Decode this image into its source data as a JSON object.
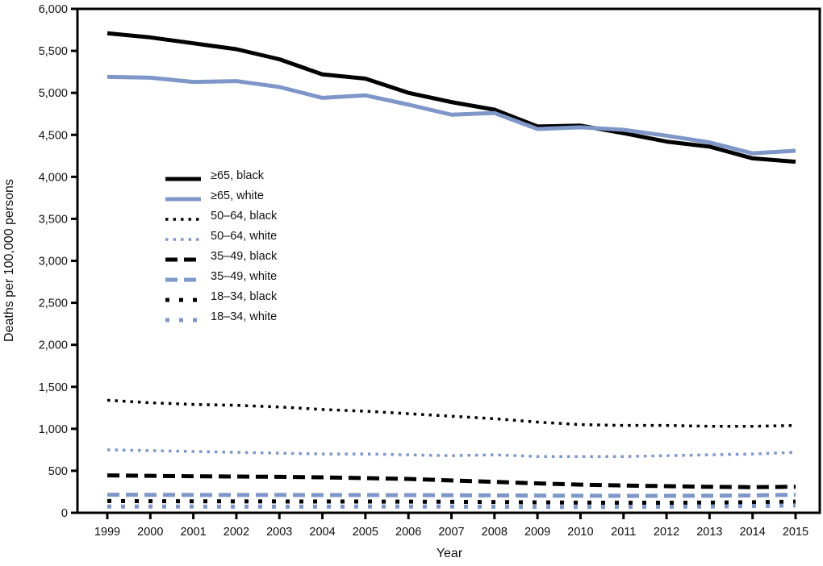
{
  "figure": {
    "background": "#ffffff",
    "frame_color": "#000000",
    "text_color": "#111111"
  },
  "colors": {
    "black_series": "#000000",
    "white_series": "#7e97c8"
  },
  "chart_data": {
    "type": "line",
    "title": "",
    "xlabel": "Year",
    "ylabel": "Deaths per 100,000 persons",
    "grid": false,
    "legend_position": "inside-upper-left",
    "xlim": [
      1999,
      2015
    ],
    "ylim": [
      0,
      6000
    ],
    "x": [
      1999,
      2000,
      2001,
      2002,
      2003,
      2004,
      2005,
      2006,
      2007,
      2008,
      2009,
      2010,
      2011,
      2012,
      2013,
      2014,
      2015
    ],
    "x_tick_labels": [
      "1999",
      "2000",
      "2001",
      "2002",
      "2003",
      "2004",
      "2005",
      "2006",
      "2007",
      "2008",
      "2009",
      "2010",
      "2011",
      "2012",
      "2013",
      "2014",
      "2015"
    ],
    "y_ticks": [
      0,
      500,
      1000,
      1500,
      2000,
      2500,
      3000,
      3500,
      4000,
      4500,
      5000,
      5500,
      6000
    ],
    "y_tick_labels": [
      "0",
      "500",
      "1,000",
      "1,500",
      "2,000",
      "2,500",
      "3,000",
      "3,500",
      "4,000",
      "4,500",
      "5,000",
      "5,500",
      "6,000"
    ],
    "series": [
      {
        "id": "ge65-black",
        "name": "≥65, black",
        "color": "#000000",
        "style": "solid",
        "values": [
          5710,
          5660,
          5590,
          5520,
          5400,
          5220,
          5170,
          5000,
          4890,
          4800,
          4600,
          4610,
          4520,
          4420,
          4360,
          4220,
          4180
        ]
      },
      {
        "id": "ge65-white",
        "name": "≥65, white",
        "color": "#7e97c8",
        "style": "solid",
        "values": [
          5190,
          5180,
          5130,
          5140,
          5070,
          4940,
          4970,
          4860,
          4740,
          4760,
          4570,
          4590,
          4560,
          4490,
          4410,
          4280,
          4310
        ]
      },
      {
        "id": "50-64-black",
        "name": "50–64, black",
        "color": "#000000",
        "style": "dotted",
        "values": [
          1340,
          1310,
          1290,
          1280,
          1260,
          1230,
          1210,
          1180,
          1150,
          1120,
          1080,
          1050,
          1040,
          1040,
          1030,
          1030,
          1040
        ]
      },
      {
        "id": "50-64-white",
        "name": "50–64, white",
        "color": "#7e97c8",
        "style": "dotted",
        "values": [
          750,
          740,
          730,
          720,
          710,
          700,
          700,
          690,
          680,
          690,
          670,
          670,
          670,
          680,
          690,
          700,
          720
        ]
      },
      {
        "id": "35-49-black",
        "name": "35–49, black",
        "color": "#000000",
        "style": "longdash",
        "values": [
          445,
          440,
          435,
          432,
          428,
          422,
          413,
          403,
          385,
          368,
          350,
          335,
          325,
          317,
          310,
          305,
          310
        ]
      },
      {
        "id": "35-49-white",
        "name": "35–49, white",
        "color": "#7e97c8",
        "style": "longdash",
        "values": [
          215,
          214,
          213,
          213,
          212,
          211,
          211,
          210,
          209,
          207,
          205,
          203,
          202,
          202,
          203,
          207,
          215
        ]
      },
      {
        "id": "18-34-black",
        "name": "18–34, black",
        "color": "#000000",
        "style": "shortdash",
        "values": [
          140,
          138,
          137,
          136,
          135,
          134,
          134,
          133,
          131,
          128,
          124,
          121,
          120,
          120,
          121,
          126,
          133
        ]
      },
      {
        "id": "18-34-white",
        "name": "18–34, white",
        "color": "#7e97c8",
        "style": "shortdash",
        "values": [
          75,
          74,
          74,
          73,
          73,
          73,
          74,
          74,
          74,
          72,
          70,
          70,
          70,
          72,
          75,
          80,
          88
        ]
      }
    ]
  }
}
